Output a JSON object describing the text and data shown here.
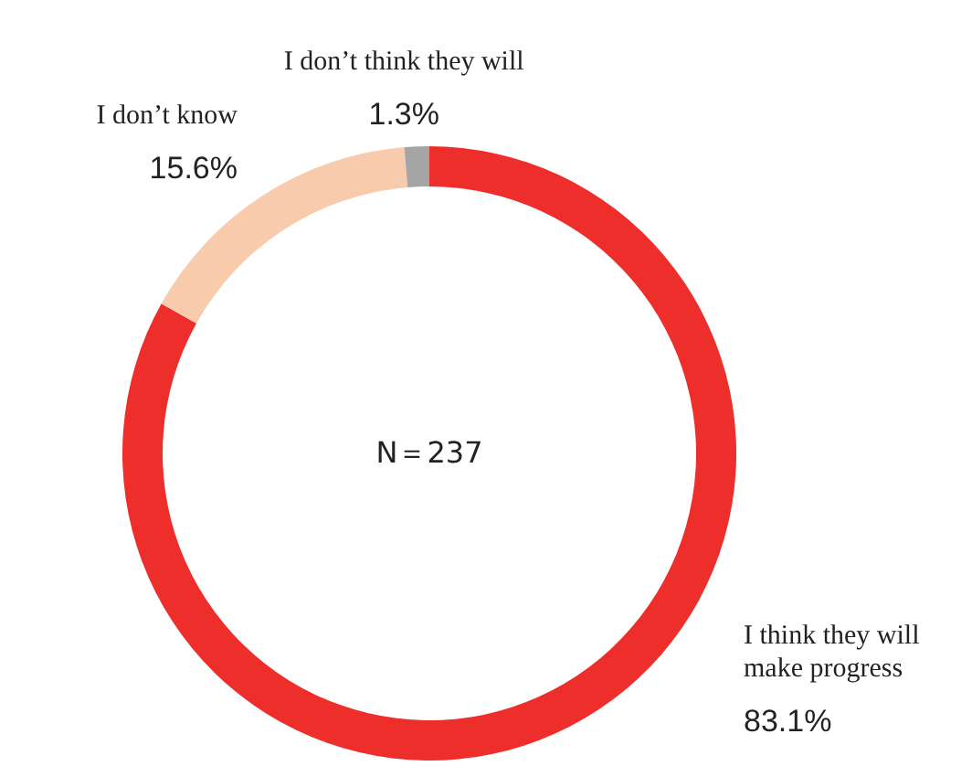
{
  "chart_data": {
    "type": "donut",
    "categories": [
      "I think they will make progress",
      "I don’t know",
      "I don’t think they will"
    ],
    "values": [
      83.1,
      15.6,
      1.3
    ],
    "value_labels": [
      "83.1%",
      "15.6%",
      "1.3%"
    ],
    "colors": [
      "#ee2e2b",
      "#f8cbad",
      "#a5a5a5"
    ],
    "annotations": [
      "N＝237"
    ]
  }
}
